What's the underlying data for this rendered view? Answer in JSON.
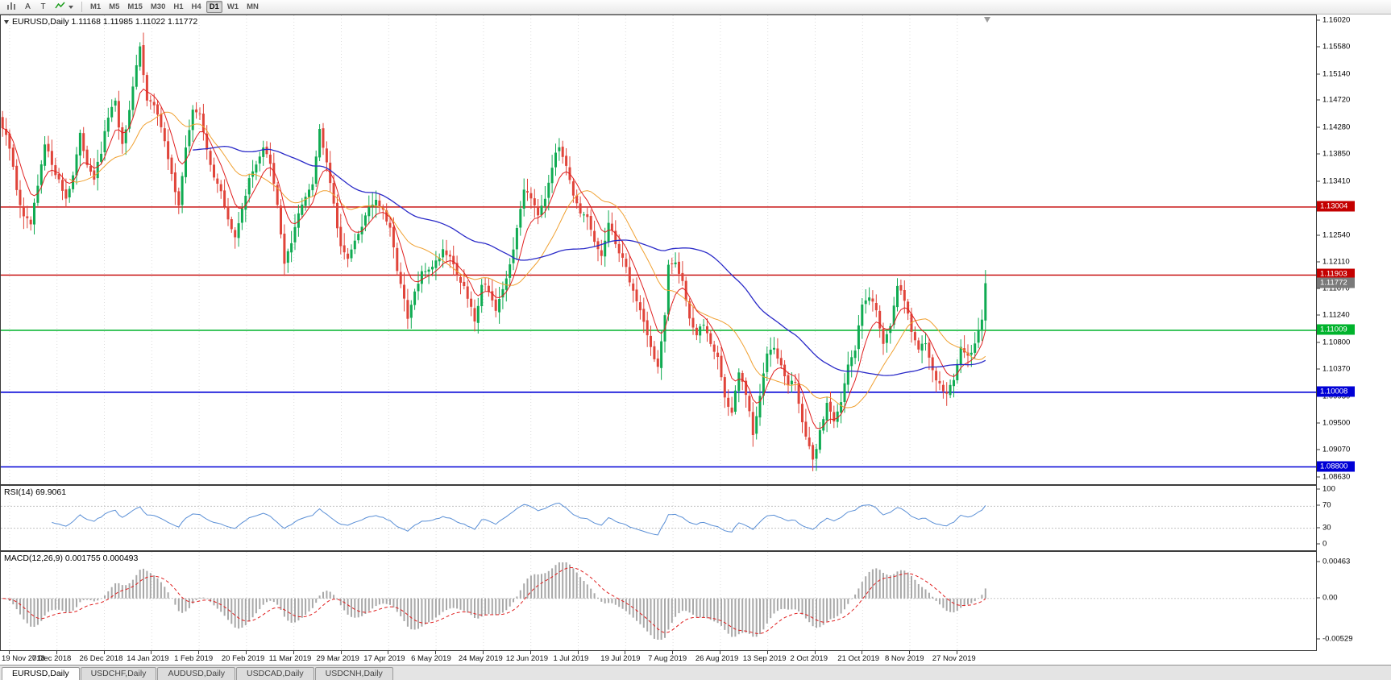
{
  "toolbar": {
    "tools": [
      {
        "name": "new-chart-icon"
      },
      {
        "label": "A"
      },
      {
        "label": "T"
      },
      {
        "name": "indicators-icon"
      }
    ],
    "timeframes": [
      "M1",
      "M5",
      "M15",
      "M30",
      "H1",
      "H4",
      "D1",
      "W1",
      "MN"
    ],
    "active_timeframe": "D1"
  },
  "chart": {
    "header": "EURUSD,Daily 1.11168 1.11985 1.11022 1.11772",
    "symbol": "EURUSD",
    "period": "Daily"
  },
  "price_axis": {
    "ticks": [
      "1.16020",
      "1.15580",
      "1.15140",
      "1.14720",
      "1.14280",
      "1.13850",
      "1.13410",
      "1.12540",
      "1.12110",
      "1.11670",
      "1.11240",
      "1.10800",
      "1.10370",
      "1.09930",
      "1.09500",
      "1.09070",
      "1.08630"
    ],
    "tags": [
      {
        "value": "1.13004",
        "color": "#c40000"
      },
      {
        "value": "1.11903",
        "color": "#c40000"
      },
      {
        "value": "1.11772",
        "color": "#7a7a7a"
      },
      {
        "value": "1.11009",
        "color": "#00b32c"
      },
      {
        "value": "1.10008",
        "color": "#0000d6"
      },
      {
        "value": "1.08800",
        "color": "#0000d6"
      }
    ]
  },
  "rsi": {
    "label": "RSI(14) 69.9061",
    "ticks": [
      "100",
      "70",
      "30",
      "0"
    ]
  },
  "macd": {
    "label": "MACD(12,26,9) 0.001755 0.000493",
    "ticks": [
      "0.00463",
      "0.00",
      "-0.00529"
    ]
  },
  "date_axis": [
    "19 Nov 2018",
    "7 Dec 2018",
    "26 Dec 2018",
    "14 Jan 2019",
    "1 Feb 2019",
    "20 Feb 2019",
    "11 Mar 2019",
    "29 Mar 2019",
    "17 Apr 2019",
    "6 May 2019",
    "24 May 2019",
    "12 Jun 2019",
    "1 Jul 2019",
    "19 Jul 2019",
    "7 Aug 2019",
    "26 Aug 2019",
    "13 Sep 2019",
    "2 Oct 2019",
    "21 Oct 2019",
    "8 Nov 2019",
    "27 Nov 2019"
  ],
  "tabs": [
    {
      "label": "EURUSD,Daily",
      "active": true
    },
    {
      "label": "USDCHF,Daily",
      "active": false
    },
    {
      "label": "AUDUSD,Daily",
      "active": false
    },
    {
      "label": "USDCAD,Daily",
      "active": false
    },
    {
      "label": "USDCNH,Daily",
      "active": false
    }
  ],
  "chart_data": {
    "type": "candlestick",
    "symbol": "EURUSD",
    "timeframe": "Daily",
    "n_candles": 280,
    "last_ohlc": {
      "open": 1.11168,
      "high": 1.11985,
      "low": 1.11022,
      "close": 1.11772
    },
    "current_price": 1.11772,
    "scale": {
      "price_max": 1.16105,
      "price_min": 1.0852
    },
    "hlines": [
      {
        "price": 1.13004,
        "color": "#c40000",
        "width": 1.4
      },
      {
        "price": 1.11903,
        "color": "#c40000",
        "width": 1.4
      },
      {
        "price": 1.11009,
        "color": "#00b32c",
        "width": 1.6
      },
      {
        "price": 1.10008,
        "color": "#0000d6",
        "width": 1.6
      },
      {
        "price": 1.088,
        "color": "#0000d6",
        "width": 1.6
      }
    ],
    "close_anchors": [
      [
        0,
        1.1428
      ],
      [
        2,
        1.1395
      ],
      [
        4,
        1.133
      ],
      [
        6,
        1.1282
      ],
      [
        8,
        1.1272
      ],
      [
        10,
        1.1332
      ],
      [
        12,
        1.14
      ],
      [
        14,
        1.1372
      ],
      [
        16,
        1.1342
      ],
      [
        18,
        1.1315
      ],
      [
        20,
        1.1352
      ],
      [
        22,
        1.1415
      ],
      [
        24,
        1.1372
      ],
      [
        26,
        1.1348
      ],
      [
        28,
        1.1388
      ],
      [
        30,
        1.1448
      ],
      [
        32,
        1.1468
      ],
      [
        34,
        1.1398
      ],
      [
        36,
        1.1452
      ],
      [
        38,
        1.1528
      ],
      [
        39,
        1.1558
      ],
      [
        41,
        1.1478
      ],
      [
        43,
        1.1462
      ],
      [
        46,
        1.1412
      ],
      [
        48,
        1.1352
      ],
      [
        50,
        1.1302
      ],
      [
        52,
        1.1392
      ],
      [
        54,
        1.1462
      ],
      [
        56,
        1.1448
      ],
      [
        58,
        1.1392
      ],
      [
        60,
        1.1352
      ],
      [
        62,
        1.1322
      ],
      [
        64,
        1.1282
      ],
      [
        66,
        1.1248
      ],
      [
        68,
        1.1302
      ],
      [
        70,
        1.1342
      ],
      [
        72,
        1.1372
      ],
      [
        74,
        1.1398
      ],
      [
        76,
        1.1368
      ],
      [
        78,
        1.1302
      ],
      [
        80,
        1.1212
      ],
      [
        82,
        1.1242
      ],
      [
        84,
        1.1288
      ],
      [
        86,
        1.1322
      ],
      [
        88,
        1.1342
      ],
      [
        90,
        1.1425
      ],
      [
        92,
        1.1378
      ],
      [
        94,
        1.1308
      ],
      [
        96,
        1.1232
      ],
      [
        98,
        1.1222
      ],
      [
        100,
        1.1242
      ],
      [
        102,
        1.1272
      ],
      [
        104,
        1.1302
      ],
      [
        106,
        1.1312
      ],
      [
        108,
        1.1292
      ],
      [
        110,
        1.1262
      ],
      [
        112,
        1.1202
      ],
      [
        114,
        1.1148
      ],
      [
        115,
        1.1118
      ],
      [
        117,
        1.1162
      ],
      [
        119,
        1.1192
      ],
      [
        121,
        1.1202
      ],
      [
        123,
        1.1212
      ],
      [
        125,
        1.1232
      ],
      [
        127,
        1.1222
      ],
      [
        129,
        1.1192
      ],
      [
        131,
        1.1168
      ],
      [
        133,
        1.1138
      ],
      [
        134,
        1.1112
      ],
      [
        136,
        1.1178
      ],
      [
        138,
        1.1168
      ],
      [
        140,
        1.1132
      ],
      [
        142,
        1.1162
      ],
      [
        144,
        1.1208
      ],
      [
        146,
        1.1262
      ],
      [
        148,
        1.1332
      ],
      [
        150,
        1.1318
      ],
      [
        152,
        1.1292
      ],
      [
        154,
        1.1318
      ],
      [
        156,
        1.1368
      ],
      [
        158,
        1.1398
      ],
      [
        160,
        1.1372
      ],
      [
        162,
        1.1322
      ],
      [
        164,
        1.1285
      ],
      [
        166,
        1.1282
      ],
      [
        168,
        1.1242
      ],
      [
        170,
        1.1222
      ],
      [
        172,
        1.1272
      ],
      [
        174,
        1.1242
      ],
      [
        176,
        1.1218
      ],
      [
        178,
        1.1182
      ],
      [
        180,
        1.1148
      ],
      [
        182,
        1.1118
      ],
      [
        184,
        1.1072
      ],
      [
        186,
        1.1042
      ],
      [
        188,
        1.1122
      ],
      [
        189,
        1.1202
      ],
      [
        191,
        1.1212
      ],
      [
        193,
        1.1182
      ],
      [
        195,
        1.1122
      ],
      [
        197,
        1.1092
      ],
      [
        199,
        1.1112
      ],
      [
        201,
        1.1082
      ],
      [
        203,
        1.1058
      ],
      [
        205,
        1.0992
      ],
      [
        207,
        1.0968
      ],
      [
        209,
        1.1032
      ],
      [
        211,
        1.0998
      ],
      [
        213,
        1.0932
      ],
      [
        215,
        1.0992
      ],
      [
        217,
        1.1068
      ],
      [
        219,
        1.1078
      ],
      [
        221,
        1.1042
      ],
      [
        223,
        1.1012
      ],
      [
        225,
        1.1018
      ],
      [
        227,
        1.0952
      ],
      [
        229,
        1.0908
      ],
      [
        230,
        1.0888
      ],
      [
        232,
        1.0938
      ],
      [
        234,
        1.0982
      ],
      [
        236,
        1.0958
      ],
      [
        238,
        1.0988
      ],
      [
        240,
        1.1042
      ],
      [
        242,
        1.1068
      ],
      [
        244,
        1.1148
      ],
      [
        246,
        1.1158
      ],
      [
        248,
        1.1132
      ],
      [
        250,
        1.1082
      ],
      [
        252,
        1.1112
      ],
      [
        254,
        1.1168
      ],
      [
        256,
        1.1152
      ],
      [
        258,
        1.1102
      ],
      [
        260,
        1.1072
      ],
      [
        262,
        1.1078
      ],
      [
        264,
        1.1038
      ],
      [
        266,
        1.1012
      ],
      [
        268,
        1.0998
      ],
      [
        270,
        1.1018
      ],
      [
        272,
        1.1078
      ],
      [
        274,
        1.1058
      ],
      [
        276,
        1.1082
      ],
      [
        278,
        1.1118
      ],
      [
        279,
        1.1177
      ]
    ],
    "indicators": {
      "rsi": {
        "period": 14,
        "current": 69.9061,
        "levels": [
          70,
          30
        ],
        "range": [
          0,
          100
        ]
      },
      "macd": {
        "fast": 12,
        "slow": 26,
        "signal": 9,
        "current_main": 0.001755,
        "current_signal": 0.000493
      },
      "moving_averages": [
        {
          "type": "ema",
          "period": 8,
          "color": "#e01f1f"
        },
        {
          "type": "sma",
          "period": 20,
          "color": "#f0a030"
        },
        {
          "type": "sma",
          "period": 55,
          "color": "#2a2ac8"
        }
      ]
    },
    "colors": {
      "up": "#0fab52",
      "down": "#e0443a",
      "ma_fast": "#e01f1f",
      "ma_medium": "#f0a030",
      "ma_slow": "#2a2ac8",
      "rsi": "#5a8fd6",
      "macd_hist": "#a8a8a8",
      "macd_signal": "#e01f1f"
    }
  }
}
